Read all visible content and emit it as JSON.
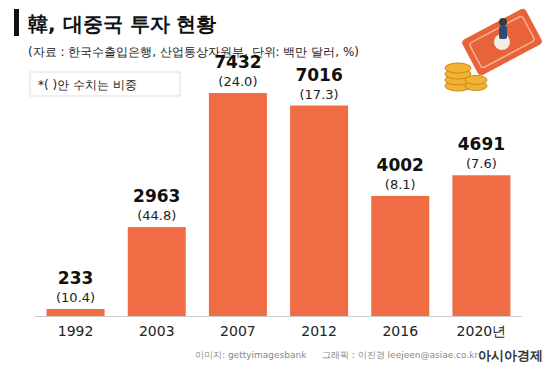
{
  "chart_data": {
    "type": "bar",
    "title": "韓, 대중국 투자 현황",
    "subtitle": "(자료 : 한국수출입은행, 산업통상자원부,  단위: 백만 달러, %)",
    "annotations": [
      "*(  )안 수치는 비중",
      "이미지: gettyimagesbank",
      "그래픽 : 이진경 leejeen@asiae.co.kr",
      "아시아경제"
    ],
    "categories": [
      "1992",
      "2003",
      "2007",
      "2012",
      "2016",
      "2020년"
    ],
    "values": [
      233,
      2963,
      7432,
      7016,
      4002,
      4691
    ],
    "shares": [
      10.4,
      44.8,
      24.0,
      17.3,
      8.1,
      7.6
    ],
    "share_labels": [
      "(10.4)",
      "(44.8)",
      "(24.0)",
      "(17.3)",
      "(8.1)",
      "(7.6)"
    ],
    "color": "#ef6c45",
    "ylim": [
      0,
      8000
    ],
    "grid": false,
    "data_labels": true,
    "tick_labels": "x"
  }
}
